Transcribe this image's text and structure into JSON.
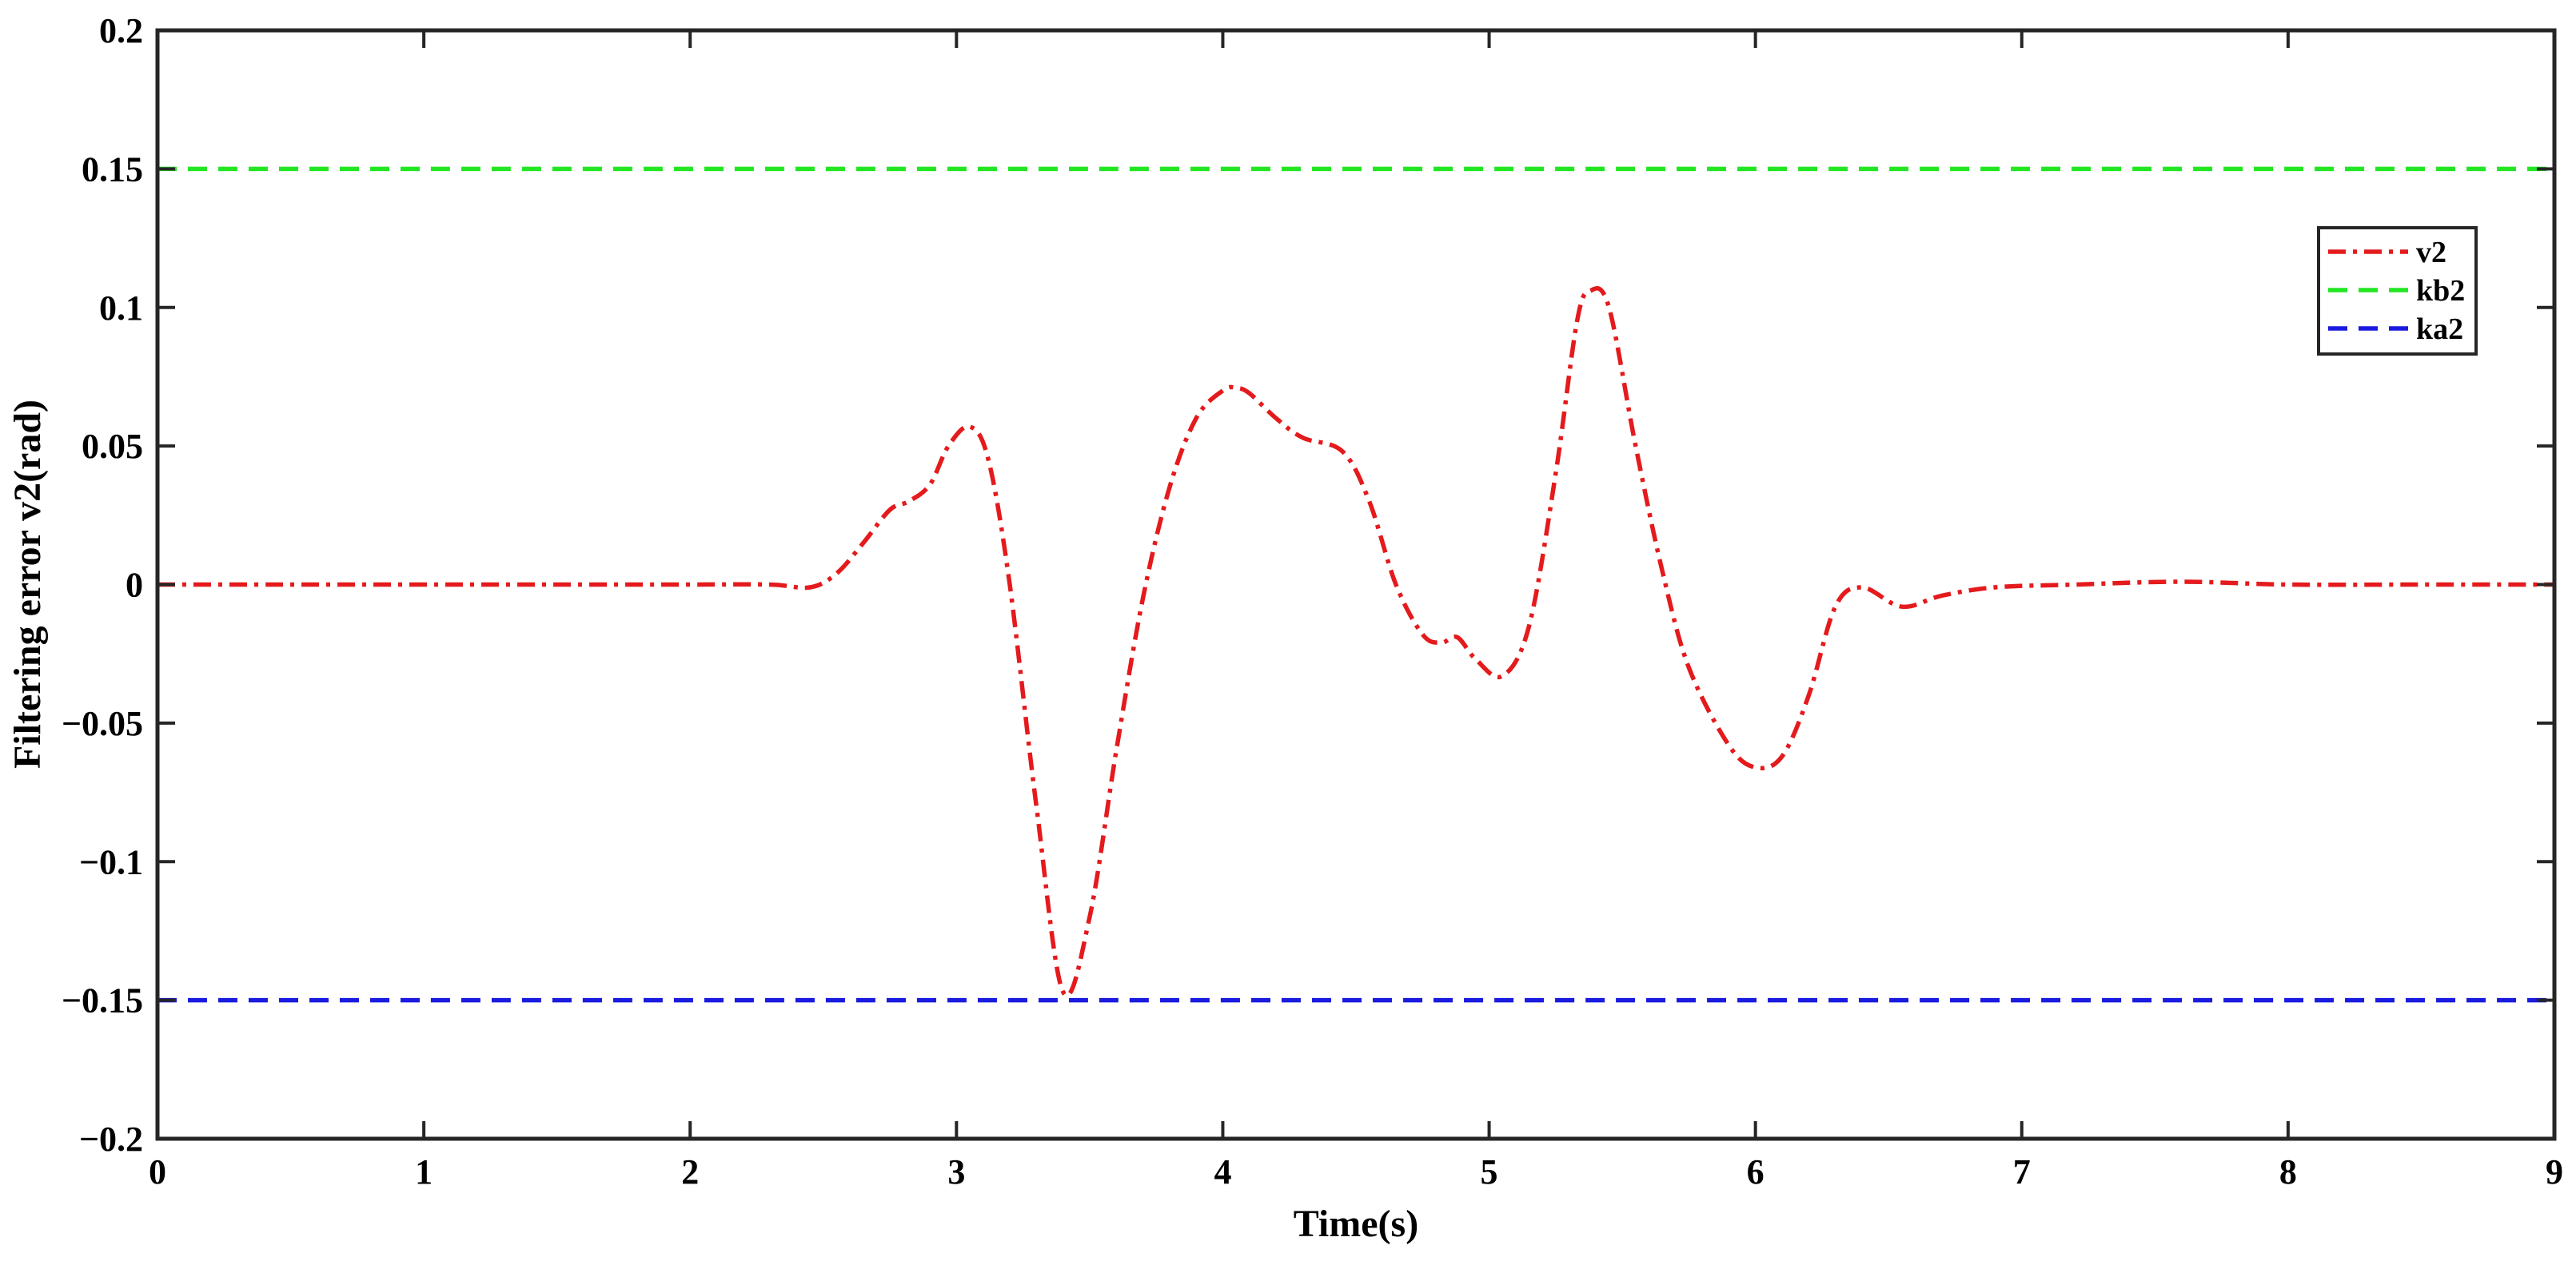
{
  "chart_data": {
    "type": "line",
    "title": "",
    "xlabel": "Time(s)",
    "ylabel": "Filtering error v2(rad)",
    "xlim": [
      0,
      9
    ],
    "ylim": [
      -0.2,
      0.2
    ],
    "xticks": [
      0,
      1,
      2,
      3,
      4,
      5,
      6,
      7,
      8,
      9
    ],
    "xtick_labels": [
      "0",
      "1",
      "2",
      "3",
      "4",
      "5",
      "6",
      "7",
      "8",
      "9"
    ],
    "yticks": [
      -0.2,
      -0.15,
      -0.1,
      -0.05,
      0,
      0.05,
      0.1,
      0.15,
      0.2
    ],
    "ytick_labels": [
      "−0.2",
      "−0.15",
      "−0.1",
      "−0.05",
      "0",
      "0.05",
      "0.1",
      "0.15",
      "0.2"
    ],
    "grid": false,
    "legend_position": "top-right",
    "series": [
      {
        "name": "v2",
        "color": "#e41a1c",
        "style": "dash-dot",
        "x": [
          0,
          0.5,
          1,
          1.5,
          2,
          2.3,
          2.45,
          2.55,
          2.65,
          2.75,
          2.82,
          2.9,
          2.97,
          3.05,
          3.12,
          3.2,
          3.3,
          3.4,
          3.5,
          3.6,
          3.7,
          3.8,
          3.9,
          4.0,
          4.05,
          4.1,
          4.2,
          4.3,
          4.45,
          4.55,
          4.65,
          4.75,
          4.82,
          4.88,
          4.95,
          5.05,
          5.15,
          5.25,
          5.33,
          5.38,
          5.45,
          5.55,
          5.65,
          5.75,
          5.9,
          6.0,
          6.1,
          6.2,
          6.3,
          6.4,
          6.55,
          6.7,
          6.9,
          7.2,
          7.6,
          8.0,
          8.5,
          9.0
        ],
        "y": [
          0,
          0,
          0,
          0,
          0,
          0,
          -0.001,
          0.004,
          0.015,
          0.027,
          0.03,
          0.036,
          0.05,
          0.057,
          0.045,
          0.0,
          -0.08,
          -0.147,
          -0.12,
          -0.06,
          -0.005,
          0.035,
          0.06,
          0.07,
          0.071,
          0.069,
          0.06,
          0.053,
          0.048,
          0.03,
          0.0,
          -0.018,
          -0.021,
          -0.019,
          -0.027,
          -0.033,
          -0.015,
          0.04,
          0.095,
          0.106,
          0.1,
          0.05,
          0.005,
          -0.03,
          -0.058,
          -0.066,
          -0.062,
          -0.04,
          -0.008,
          -0.001,
          -0.008,
          -0.004,
          -0.001,
          0.0,
          0.001,
          0.0,
          0.0,
          0.0
        ]
      },
      {
        "name": "kb2",
        "color": "#22e622",
        "style": "dashed",
        "x": [
          0,
          9
        ],
        "y": [
          0.15,
          0.15
        ]
      },
      {
        "name": "ka2",
        "color": "#1a1ae0",
        "style": "dashed",
        "x": [
          0,
          9
        ],
        "y": [
          -0.15,
          -0.15
        ]
      }
    ]
  }
}
